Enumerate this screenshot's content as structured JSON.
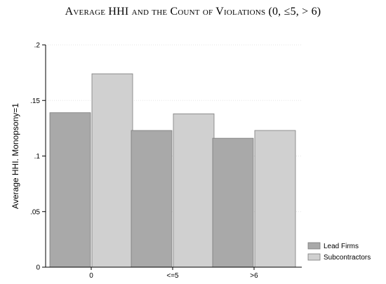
{
  "chart_data": {
    "type": "bar",
    "title": "Average HHI and the Count of Violations (0, ≤5, > 6)",
    "ylabel": "Average HHI. Monopsony=1",
    "xlabel": "",
    "categories": [
      "0",
      "<=5",
      ">6"
    ],
    "series": [
      {
        "name": "Lead Firms",
        "values": [
          0.139,
          0.123,
          0.116
        ],
        "color": "#a9a9a9"
      },
      {
        "name": "Subcontractors",
        "values": [
          0.174,
          0.138,
          0.123
        ],
        "color": "#d0d0d0"
      }
    ],
    "ylim": [
      0,
      0.2
    ],
    "yticks": [
      {
        "value": 0,
        "label": "0"
      },
      {
        "value": 0.05,
        "label": ".05"
      },
      {
        "value": 0.1,
        "label": ".1"
      },
      {
        "value": 0.15,
        "label": ".15"
      },
      {
        "value": 0.2,
        "label": ".2"
      }
    ],
    "grid": true,
    "legend_position": "bottom-right"
  }
}
